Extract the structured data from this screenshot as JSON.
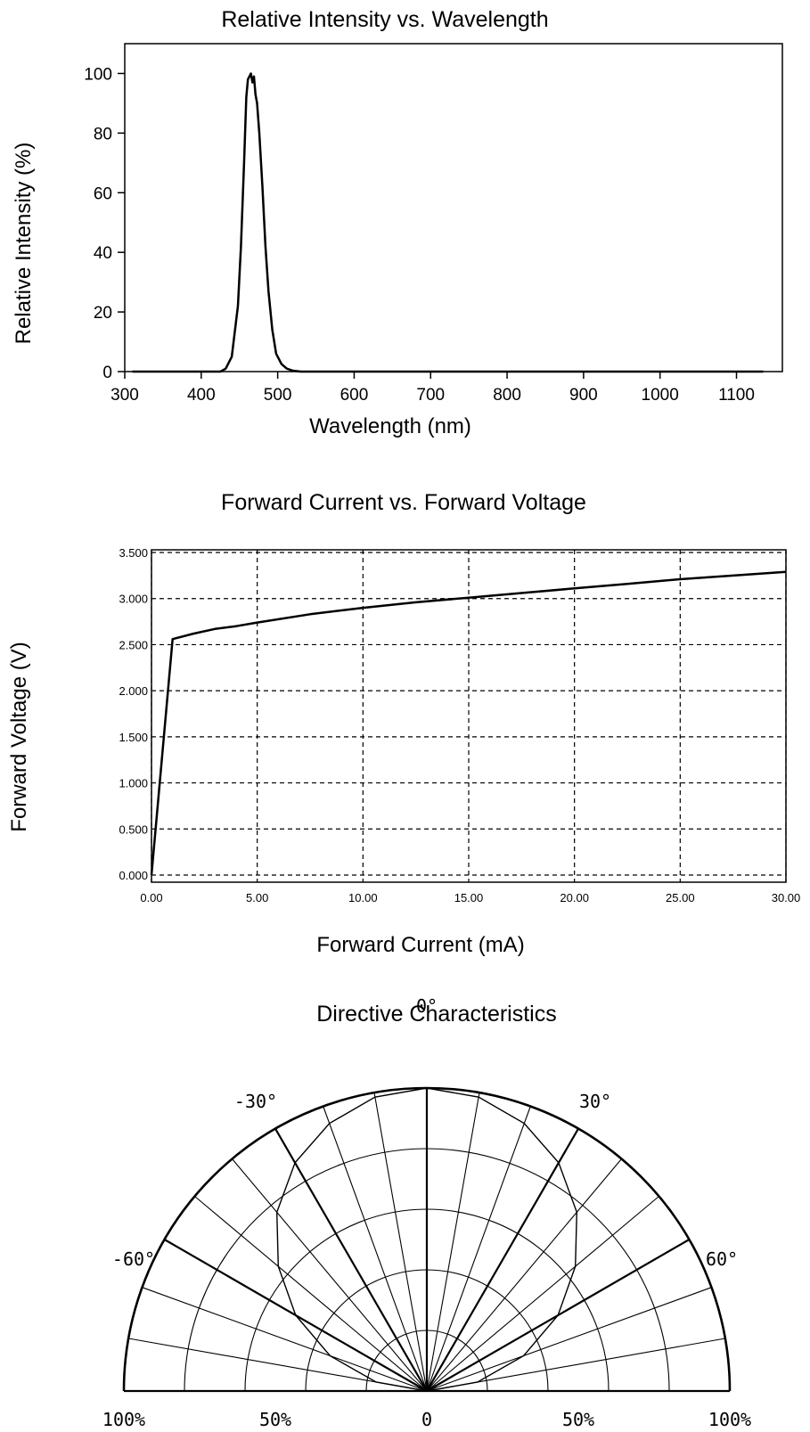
{
  "chart_data": [
    {
      "type": "line",
      "title": "Relative Intensity vs. Wavelength",
      "xlabel": "Wavelength (nm)",
      "ylabel": "Relative Intensity (%)",
      "xlim": [
        300,
        1160
      ],
      "ylim": [
        0,
        110
      ],
      "x_ticks": [
        "300",
        "400",
        "500",
        "600",
        "700",
        "800",
        "900",
        "1000",
        "1100"
      ],
      "y_ticks": [
        "0",
        "20",
        "40",
        "60",
        "80",
        "100"
      ],
      "grid": false,
      "x": [
        310,
        400,
        425,
        432,
        440,
        448,
        452,
        456,
        459,
        461,
        463,
        465,
        467,
        469,
        471,
        473,
        476,
        480,
        484,
        488,
        493,
        498,
        505,
        512,
        520,
        530,
        600,
        800,
        1000,
        1135
      ],
      "y": [
        0,
        0,
        0,
        1,
        5,
        22,
        42,
        70,
        92,
        98,
        99,
        100,
        97,
        99,
        93,
        90,
        80,
        62,
        42,
        27,
        14,
        6,
        2.5,
        1,
        0.3,
        0,
        0,
        0,
        0,
        0
      ]
    },
    {
      "type": "line",
      "title": "Forward Current vs. Forward Voltage",
      "xlabel": "Forward Current (mA)",
      "ylabel": "Forward Voltage (V)",
      "xlim": [
        0,
        30
      ],
      "ylim": [
        0,
        3.5
      ],
      "x_ticks": [
        "0.00",
        "5.00",
        "10.00",
        "15.00",
        "20.00",
        "25.00",
        "30.00"
      ],
      "y_ticks": [
        "0.000",
        "0.500",
        "1.000",
        "1.500",
        "2.000",
        "2.500",
        "3.000",
        "3.500"
      ],
      "grid": true,
      "x": [
        0.0,
        1.0,
        2.0,
        3.0,
        4.0,
        5.0,
        7.5,
        10.0,
        12.5,
        15.0,
        17.5,
        20.0,
        22.5,
        25.0,
        27.5,
        30.0
      ],
      "y": [
        0.0,
        2.56,
        2.62,
        2.67,
        2.7,
        2.74,
        2.83,
        2.9,
        2.96,
        3.01,
        3.06,
        3.11,
        3.16,
        3.21,
        3.25,
        3.29
      ]
    },
    {
      "type": "polar",
      "title": "Directive Characteristics",
      "angle_labels": [
        "-60°",
        "-30°",
        "0°",
        "30°",
        "60°"
      ],
      "radial_labels": [
        "100%",
        "50%",
        "0",
        "50%",
        "100%"
      ],
      "angle_range_deg": [
        -90,
        90
      ],
      "radial_range_pct": [
        0,
        100
      ],
      "theta_deg": [
        -90,
        -80,
        -70,
        -60,
        -50,
        -40,
        -30,
        -20,
        -10,
        0,
        10,
        20,
        30,
        40,
        50,
        60,
        70,
        80,
        90
      ],
      "r_pct": [
        0,
        17,
        34,
        50,
        64,
        77,
        87,
        94,
        98.5,
        100,
        98.5,
        94,
        87,
        77,
        64,
        50,
        34,
        17,
        0
      ]
    }
  ]
}
